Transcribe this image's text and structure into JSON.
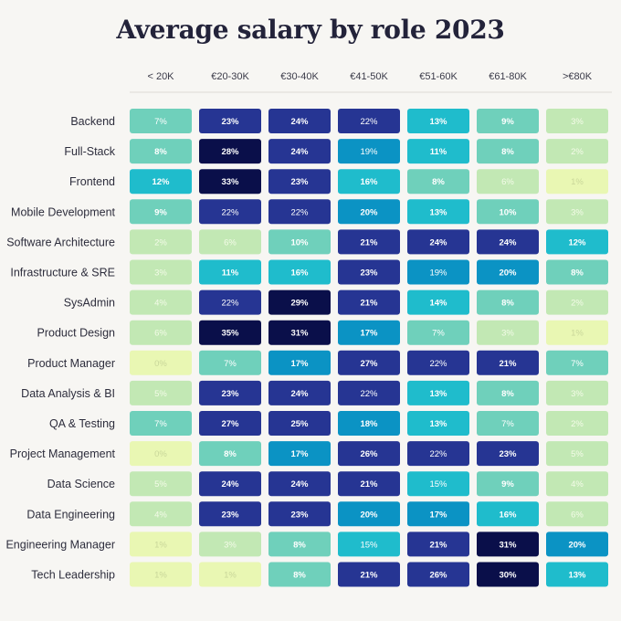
{
  "chart_data": {
    "type": "heatmap",
    "title": "Average salary by role 2023",
    "columns": [
      "< 20K",
      "€20-30K",
      "€30-40K",
      "€41-50K",
      "€51-60K",
      "€61-80K",
      ">€80K"
    ],
    "rows": [
      "Backend",
      "Full-Stack",
      "Frontend",
      "Mobile Development",
      "Software Architecture",
      "Infrastructure & SRE",
      "SysAdmin",
      "Product Design",
      "Product Manager",
      "Data Analysis & BI",
      "QA & Testing",
      "Project Management",
      "Data Science",
      "Data Engineering",
      "Engineering Manager",
      "Tech Leadership"
    ],
    "values": [
      [
        7,
        23,
        24,
        22,
        13,
        9,
        3
      ],
      [
        8,
        28,
        24,
        19,
        11,
        8,
        2
      ],
      [
        12,
        33,
        23,
        16,
        8,
        6,
        1
      ],
      [
        9,
        22,
        22,
        20,
        13,
        10,
        3
      ],
      [
        2,
        6,
        10,
        21,
        24,
        24,
        12
      ],
      [
        3,
        11,
        16,
        23,
        19,
        20,
        8
      ],
      [
        4,
        22,
        29,
        21,
        14,
        8,
        2
      ],
      [
        6,
        35,
        31,
        17,
        7,
        3,
        1
      ],
      [
        0,
        7,
        17,
        27,
        22,
        21,
        7
      ],
      [
        5,
        23,
        24,
        22,
        13,
        8,
        3
      ],
      [
        7,
        27,
        25,
        18,
        13,
        7,
        2
      ],
      [
        0,
        8,
        17,
        26,
        22,
        23,
        5
      ],
      [
        5,
        24,
        24,
        21,
        15,
        9,
        4
      ],
      [
        4,
        23,
        23,
        20,
        17,
        16,
        6
      ],
      [
        1,
        3,
        8,
        15,
        21,
        31,
        20
      ],
      [
        1,
        1,
        8,
        21,
        26,
        30,
        13
      ]
    ],
    "unit": "%",
    "color_scale": [
      "#e9f7b3",
      "#c2e8b4",
      "#6fd0bb",
      "#1fbccc",
      "#0b93c4",
      "#263593",
      "#0a0f4a"
    ]
  }
}
